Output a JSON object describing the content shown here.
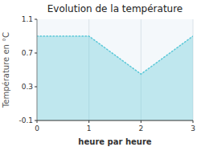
{
  "chart_data": {
    "type": "area",
    "title": "Evolution de la température",
    "x_label": "heure par heure",
    "y_label": "Température en °C",
    "x": [
      0,
      1,
      2,
      3
    ],
    "values": [
      0.9,
      0.9,
      0.45,
      0.9
    ],
    "color": "#5bc8d8",
    "line_style": "dotted",
    "xlim": [
      0,
      3
    ],
    "ylim": [
      -0.1,
      1.1
    ],
    "xticks": [
      0,
      1,
      2,
      3
    ],
    "yticks": [
      -0.1,
      0.3,
      0.7,
      1.1
    ],
    "grid": "x"
  }
}
